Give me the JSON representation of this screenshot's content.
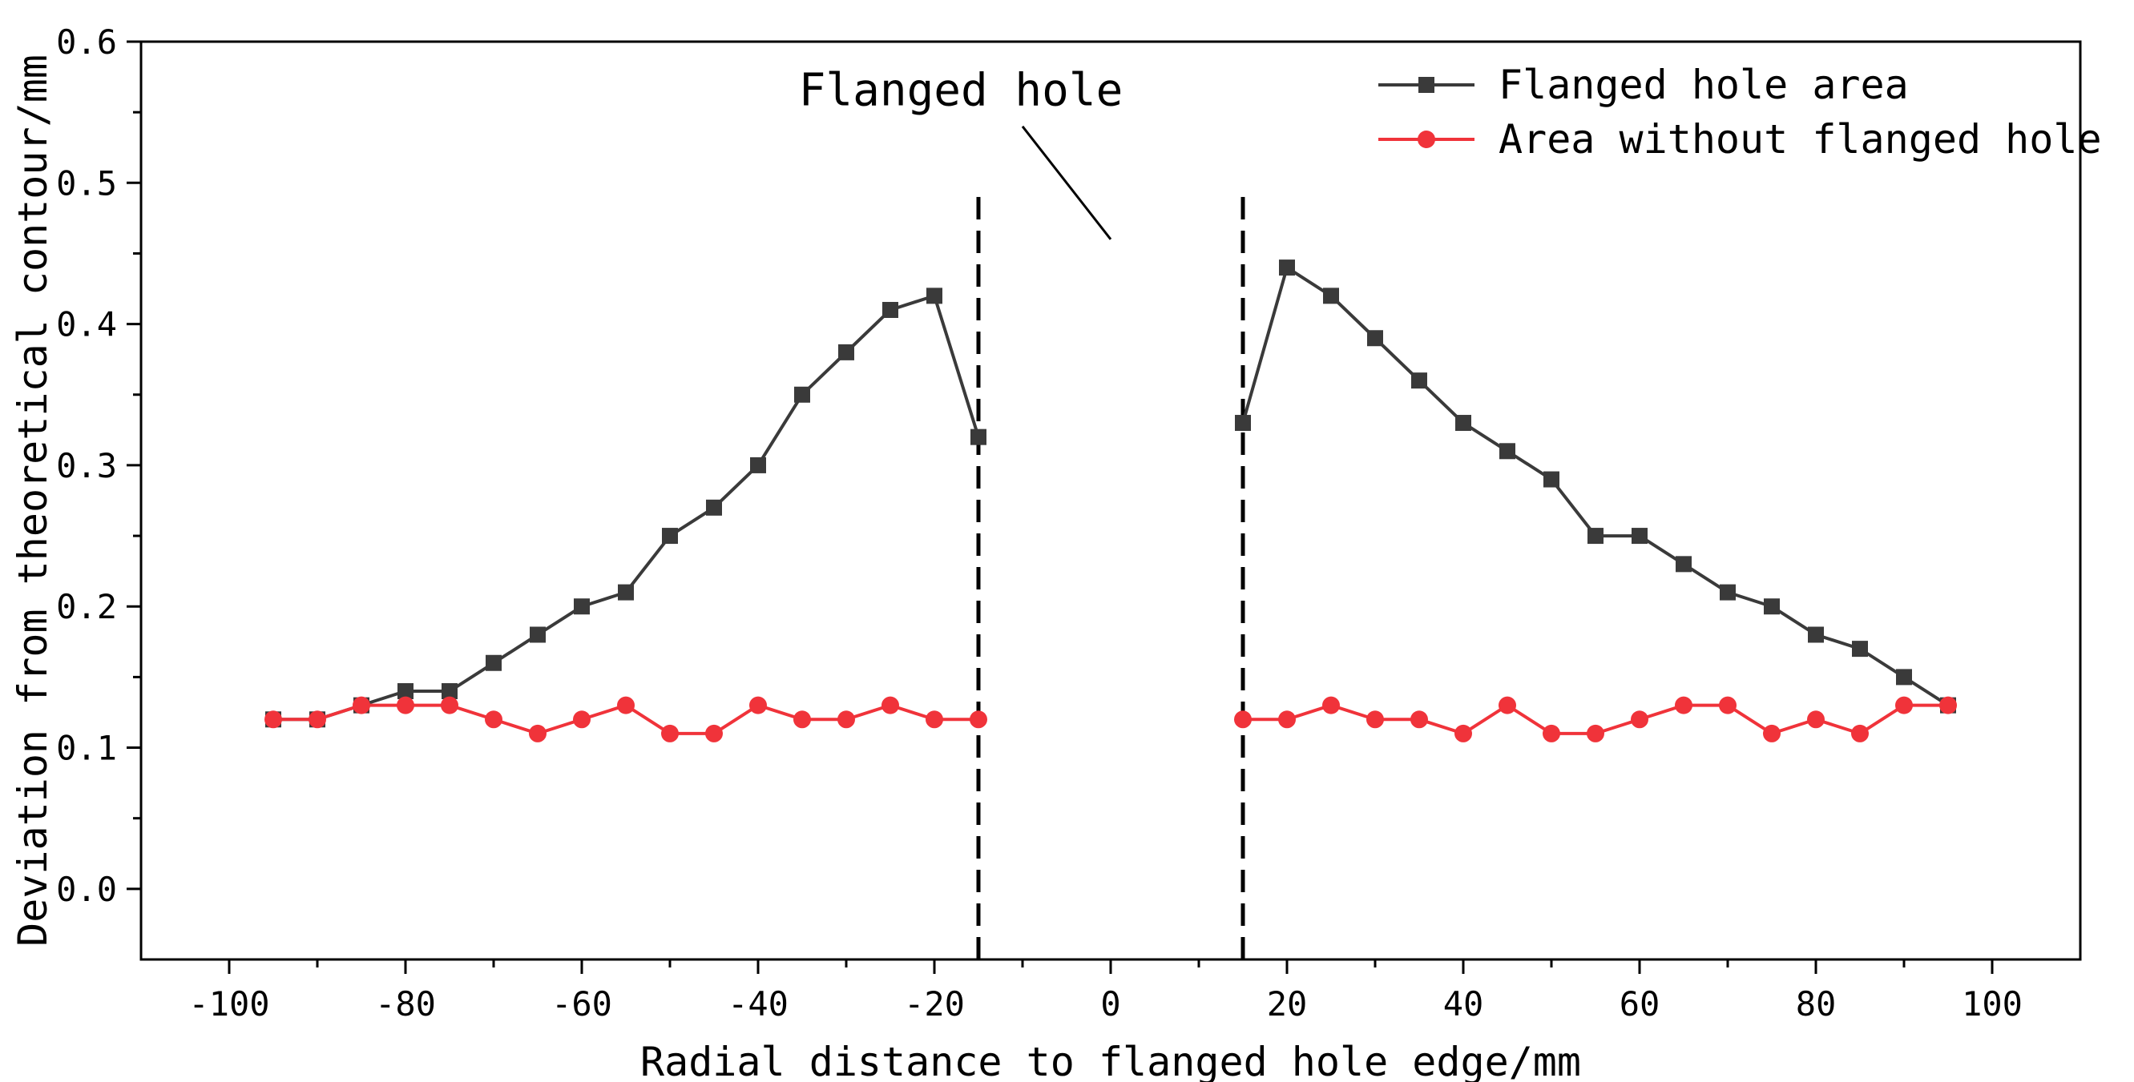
{
  "chart_data": {
    "type": "line",
    "title": "",
    "xlabel": "Radial distance to flanged hole edge/mm",
    "ylabel": "Deviation from theoretical contour/mm",
    "xlim": [
      -110,
      110
    ],
    "ylim": [
      -0.05,
      0.6
    ],
    "xticks": [
      -100,
      -80,
      -60,
      -40,
      -20,
      0,
      20,
      40,
      60,
      80,
      100
    ],
    "xtick_labels": [
      "-100",
      "-80",
      "-60",
      "-40",
      "-20",
      "0",
      "20",
      "40",
      "60",
      "80",
      "100"
    ],
    "yticks": [
      0.0,
      0.1,
      0.2,
      0.3,
      0.4,
      0.5,
      0.6
    ],
    "ytick_labels": [
      "0.0",
      "0.1",
      "0.2",
      "0.3",
      "0.4",
      "0.5",
      "0.6"
    ],
    "grid": false,
    "legend_position": "top-right",
    "series": [
      {
        "name": "Flanged hole area",
        "color": "#3a3a3a",
        "marker": "square",
        "segments": [
          {
            "x": [
              -95,
              -90,
              -85,
              -80,
              -75,
              -70,
              -65,
              -60,
              -55,
              -50,
              -45,
              -40,
              -35,
              -30,
              -25,
              -20,
              -15
            ],
            "y": [
              0.12,
              0.12,
              0.13,
              0.14,
              0.14,
              0.16,
              0.18,
              0.2,
              0.21,
              0.25,
              0.27,
              0.3,
              0.35,
              0.38,
              0.41,
              0.42,
              0.32
            ]
          },
          {
            "x": [
              15,
              20,
              25,
              30,
              35,
              40,
              45,
              50,
              55,
              60,
              65,
              70,
              75,
              80,
              85,
              90,
              95
            ],
            "y": [
              0.33,
              0.44,
              0.42,
              0.39,
              0.36,
              0.33,
              0.31,
              0.29,
              0.25,
              0.25,
              0.23,
              0.21,
              0.2,
              0.18,
              0.17,
              0.15,
              0.13
            ]
          }
        ]
      },
      {
        "name": "Area without flanged hole",
        "color": "#f0333a",
        "marker": "circle",
        "segments": [
          {
            "x": [
              -95,
              -90,
              -85,
              -80,
              -75,
              -70,
              -65,
              -60,
              -55,
              -50,
              -45,
              -40,
              -35,
              -30,
              -25,
              -20,
              -15
            ],
            "y": [
              0.12,
              0.12,
              0.13,
              0.13,
              0.13,
              0.12,
              0.11,
              0.12,
              0.13,
              0.11,
              0.11,
              0.13,
              0.12,
              0.12,
              0.13,
              0.12,
              0.12
            ]
          },
          {
            "x": [
              15,
              20,
              25,
              30,
              35,
              40,
              45,
              50,
              55,
              60,
              65,
              70,
              75,
              80,
              85,
              90,
              95
            ],
            "y": [
              0.12,
              0.12,
              0.13,
              0.12,
              0.12,
              0.11,
              0.13,
              0.11,
              0.11,
              0.12,
              0.13,
              0.13,
              0.11,
              0.12,
              0.11,
              0.13,
              0.13
            ]
          }
        ]
      }
    ],
    "reference_lines": {
      "x_values": [
        -15,
        15
      ],
      "y_range": [
        -0.05,
        0.49
      ],
      "style": "dashed",
      "color": "#000000"
    },
    "annotation": {
      "text": "Flanged hole",
      "pointer_from": [
        -10,
        0.54
      ],
      "pointer_to": [
        0,
        0.46
      ]
    }
  }
}
